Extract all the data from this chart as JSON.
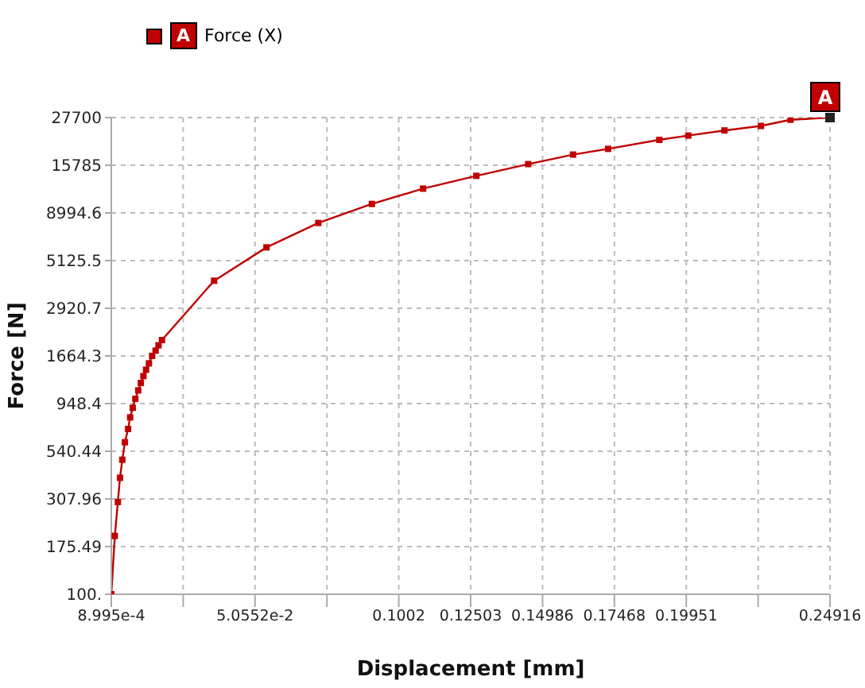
{
  "chart_data": {
    "type": "line",
    "xlabel": "Displacement [mm]",
    "ylabel": "Force [N]",
    "x": [
      0.0009,
      0.00211,
      0.00317,
      0.0039,
      0.0047,
      0.0056,
      0.0067,
      0.0074,
      0.0083,
      0.0092,
      0.0102,
      0.0111,
      0.012,
      0.0129,
      0.0139,
      0.015,
      0.0162,
      0.0172,
      0.0184,
      0.0364,
      0.0545,
      0.0724,
      0.0909,
      0.1086,
      0.127,
      0.1449,
      0.1604,
      0.1725,
      0.1902,
      0.2002,
      0.2127,
      0.2253,
      0.2355,
      0.24916
    ],
    "series": [
      {
        "name": "Force (X)",
        "color": "#c00000",
        "values": [
          100,
          199,
          297,
          395,
          489,
          601,
          703,
          806,
          902,
          1003,
          1108,
          1210,
          1312,
          1414,
          1524,
          1664,
          1771,
          1886,
          2006,
          4040,
          5990,
          7990,
          10000,
          11980,
          13930,
          16000,
          17900,
          19150,
          21300,
          22400,
          23800,
          25100,
          27000,
          27700
        ]
      }
    ],
    "xlim": [
      0.0008995,
      0.24916
    ],
    "xticks": [
      {
        "value": 0.0008995,
        "label": "8.995e-4"
      },
      {
        "value": 0.025726,
        "label": null
      },
      {
        "value": 0.050552,
        "label": "5.0552e-2"
      },
      {
        "value": 0.075378,
        "label": null
      },
      0.1002,
      0.12503,
      0.14986,
      0.17468,
      0.19951,
      {
        "value": 0.22434,
        "label": null
      },
      0.24916
    ],
    "ylim": [
      100,
      27700
    ],
    "yticks": [
      {
        "value": 100,
        "label": "100."
      },
      175.49,
      307.96,
      540.44,
      948.4,
      1664.3,
      2920.7,
      5125.5,
      8994.6,
      15785,
      27700
    ],
    "log": "y",
    "grid": true,
    "legend": "top left",
    "marker": "square",
    "line_style": "solid",
    "annotations": [
      {
        "text": "A",
        "x": 0.24916,
        "y": 27700
      }
    ]
  }
}
